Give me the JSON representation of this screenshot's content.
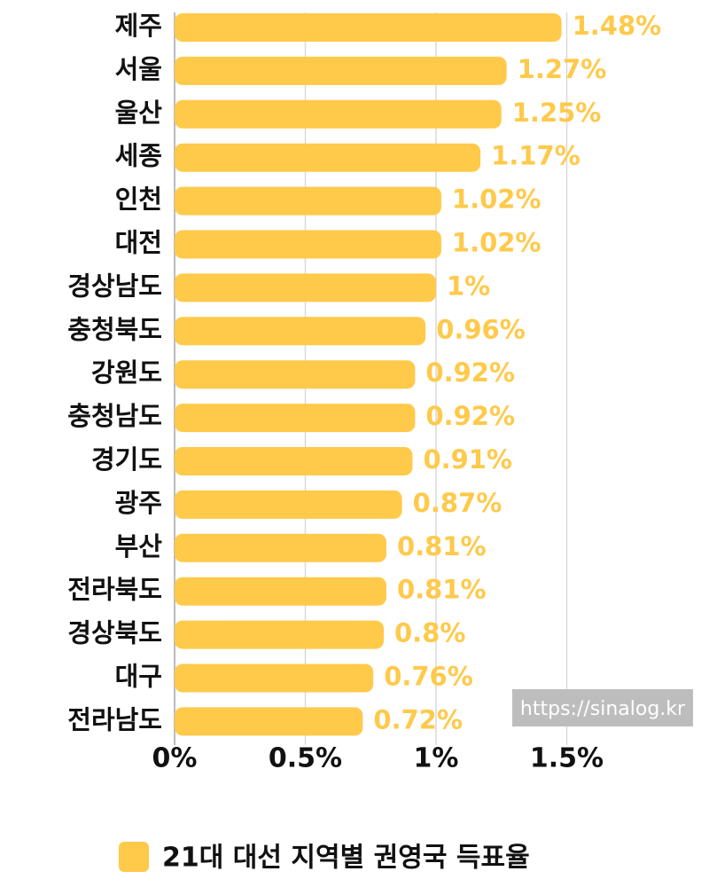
{
  "chart_data": {
    "type": "bar",
    "orientation": "horizontal",
    "categories": [
      "제주",
      "서울",
      "울산",
      "세종",
      "인천",
      "대전",
      "경상남도",
      "충청북도",
      "강원도",
      "충청남도",
      "경기도",
      "광주",
      "부산",
      "전라북도",
      "경상북도",
      "대구",
      "전라남도"
    ],
    "values": [
      1.48,
      1.27,
      1.25,
      1.17,
      1.02,
      1.02,
      1,
      0.96,
      0.92,
      0.92,
      0.91,
      0.87,
      0.81,
      0.81,
      0.8,
      0.76,
      0.72
    ],
    "value_labels": [
      "1.48%",
      "1.27%",
      "1.25%",
      "1.17%",
      "1.02%",
      "1.02%",
      "1%",
      "0.96%",
      "0.92%",
      "0.92%",
      "0.91%",
      "0.87%",
      "0.81%",
      "0.81%",
      "0.8%",
      "0.76%",
      "0.72%"
    ],
    "xticks": [
      0,
      0.5,
      1,
      1.5
    ],
    "xtick_labels": [
      "0%",
      "0.5%",
      "1%",
      "1.5%"
    ],
    "xlim": [
      0,
      1.5
    ],
    "grid": true,
    "legend": {
      "label": "21대 대선 지역별 권영국 득표율",
      "placement": "bottom"
    },
    "series": [
      {
        "name": "21대 대선 지역별 권영국 득표율",
        "color": "#FFC94A"
      }
    ]
  },
  "colors": {
    "bar": "#FFC94A",
    "value_label": "#FFC94A",
    "grid": "#d9d9d9",
    "axis": "#bbbbbb",
    "watermark_bg": "#bdbdbd"
  },
  "watermark": "https://sinalog.kr"
}
